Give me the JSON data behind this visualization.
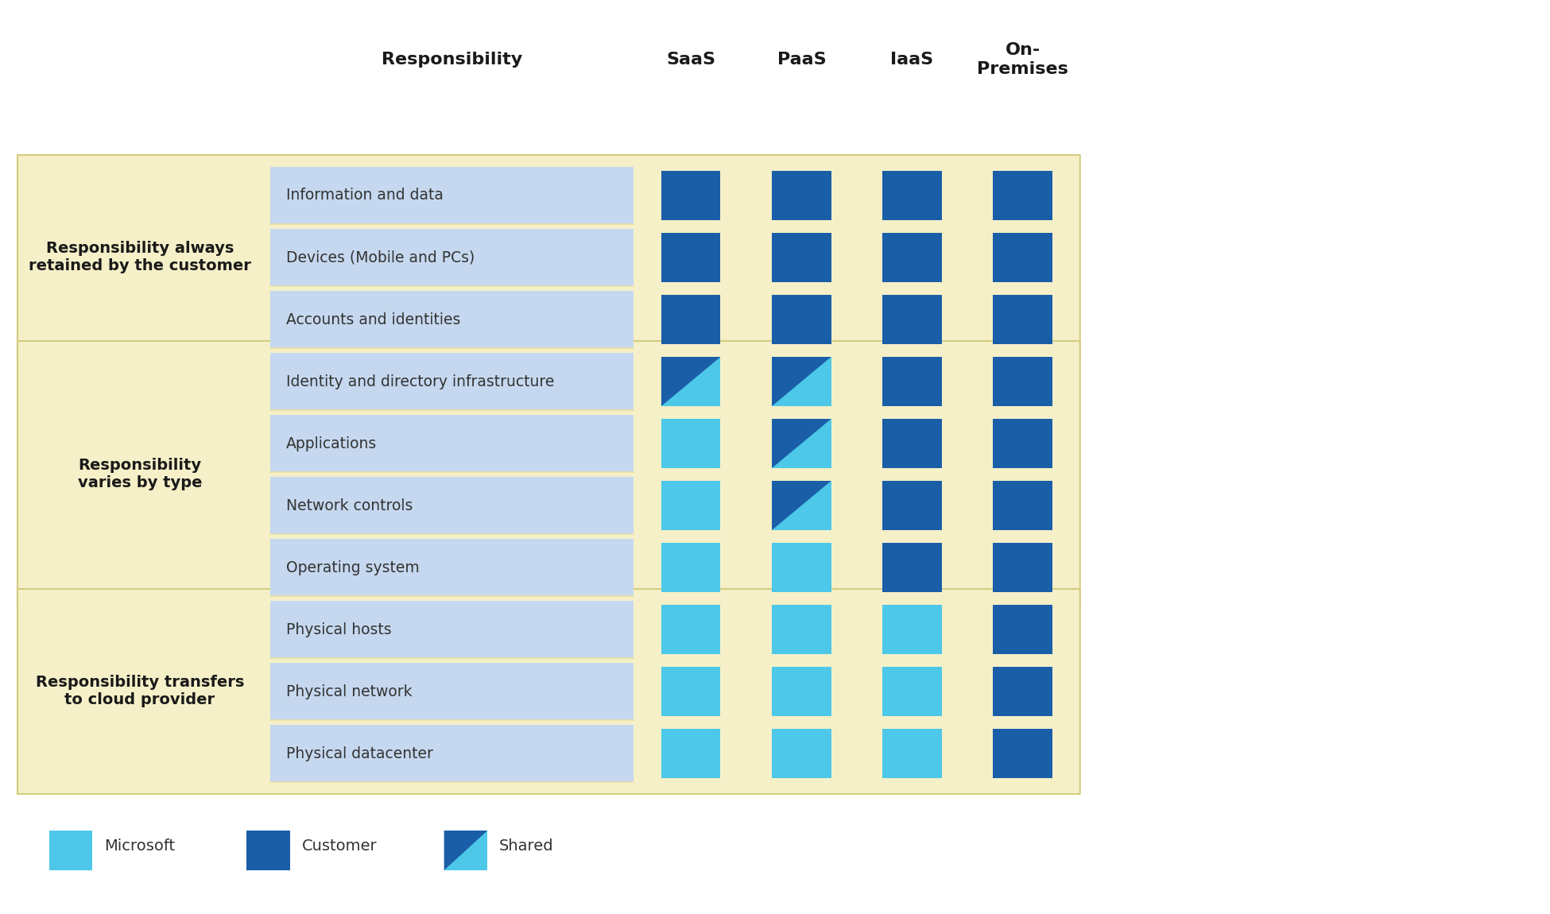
{
  "rows": [
    "Information and data",
    "Devices (Mobile and PCs)",
    "Accounts and identities",
    "Identity and directory infrastructure",
    "Applications",
    "Network controls",
    "Operating system",
    "Physical hosts",
    "Physical network",
    "Physical datacenter"
  ],
  "groups": [
    {
      "label": "Responsibility always\nretained by the customer",
      "rows": [
        0,
        1,
        2
      ]
    },
    {
      "label": "Responsibility\nvaries by type",
      "rows": [
        3,
        4,
        5,
        6
      ]
    },
    {
      "label": "Responsibility transfers\nto cloud provider",
      "rows": [
        7,
        8,
        9
      ]
    }
  ],
  "columns": [
    "SaaS",
    "PaaS",
    "IaaS",
    "On-\nPremises"
  ],
  "responsibility_header": "Responsibility",
  "cell_types": [
    [
      "customer",
      "customer",
      "customer",
      "customer"
    ],
    [
      "customer",
      "customer",
      "customer",
      "customer"
    ],
    [
      "customer",
      "customer",
      "customer",
      "customer"
    ],
    [
      "shared",
      "shared",
      "customer",
      "customer"
    ],
    [
      "microsoft",
      "shared",
      "customer",
      "customer"
    ],
    [
      "microsoft",
      "shared",
      "customer",
      "customer"
    ],
    [
      "microsoft",
      "microsoft",
      "customer",
      "customer"
    ],
    [
      "microsoft",
      "microsoft",
      "microsoft",
      "customer"
    ],
    [
      "microsoft",
      "microsoft",
      "microsoft",
      "customer"
    ],
    [
      "microsoft",
      "microsoft",
      "microsoft",
      "customer"
    ]
  ],
  "colors": {
    "microsoft": "#4DC8E8",
    "customer": "#1A5EA8",
    "shared_top": "#1A5EA8",
    "shared_bottom": "#4DC8E8",
    "row_bg": "#C5D8EF",
    "group_bg": "#F5F0C8",
    "col_header_bg": "#FFFFFF",
    "white": "#FFFFFF",
    "text_dark": "#333333",
    "text_bold": "#1A1A1A",
    "separator": "#E8E0A0"
  },
  "figsize": [
    19.5,
    11.5
  ],
  "dpi": 100
}
